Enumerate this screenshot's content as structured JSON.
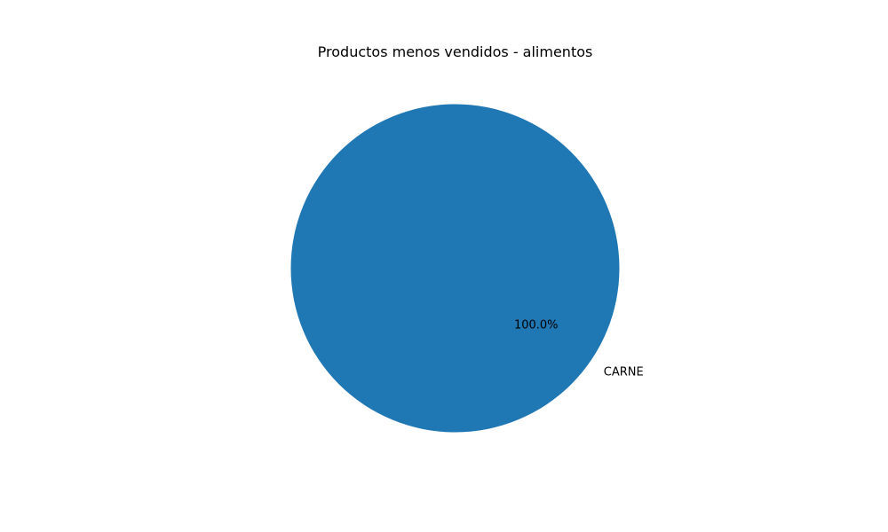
{
  "chart_data": {
    "type": "pie",
    "title": "Productos menos vendidos - alimentos",
    "slices": [
      {
        "label": "CARNE",
        "value": 100.0,
        "percent_label": "100.0%",
        "color": "#1f77b4"
      }
    ]
  }
}
